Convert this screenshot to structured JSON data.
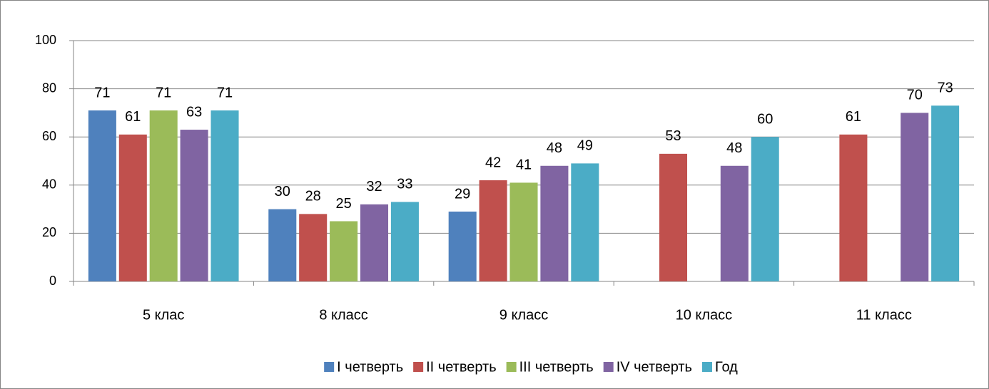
{
  "chart_data": {
    "type": "bar",
    "categories": [
      "5 клас",
      "8 класс",
      "9 класс",
      "10 класс",
      "11 класс"
    ],
    "series": [
      {
        "name": "I четверть",
        "color": "#4f81bd",
        "values": [
          71,
          30,
          29,
          null,
          null
        ]
      },
      {
        "name": "II четверть",
        "color": "#c0504d",
        "values": [
          61,
          28,
          42,
          53,
          61
        ]
      },
      {
        "name": "III четверть",
        "color": "#9bbb59",
        "values": [
          71,
          25,
          41,
          null,
          null
        ]
      },
      {
        "name": "IV четверть",
        "color": "#8064a2",
        "values": [
          63,
          32,
          48,
          48,
          70
        ]
      },
      {
        "name": "Год",
        "color": "#4bacc6",
        "values": [
          71,
          33,
          49,
          60,
          73
        ]
      }
    ],
    "ylim": [
      0,
      100
    ],
    "yticks": [
      0,
      20,
      40,
      60,
      80,
      100
    ],
    "grid": true,
    "legend": "bottom"
  }
}
